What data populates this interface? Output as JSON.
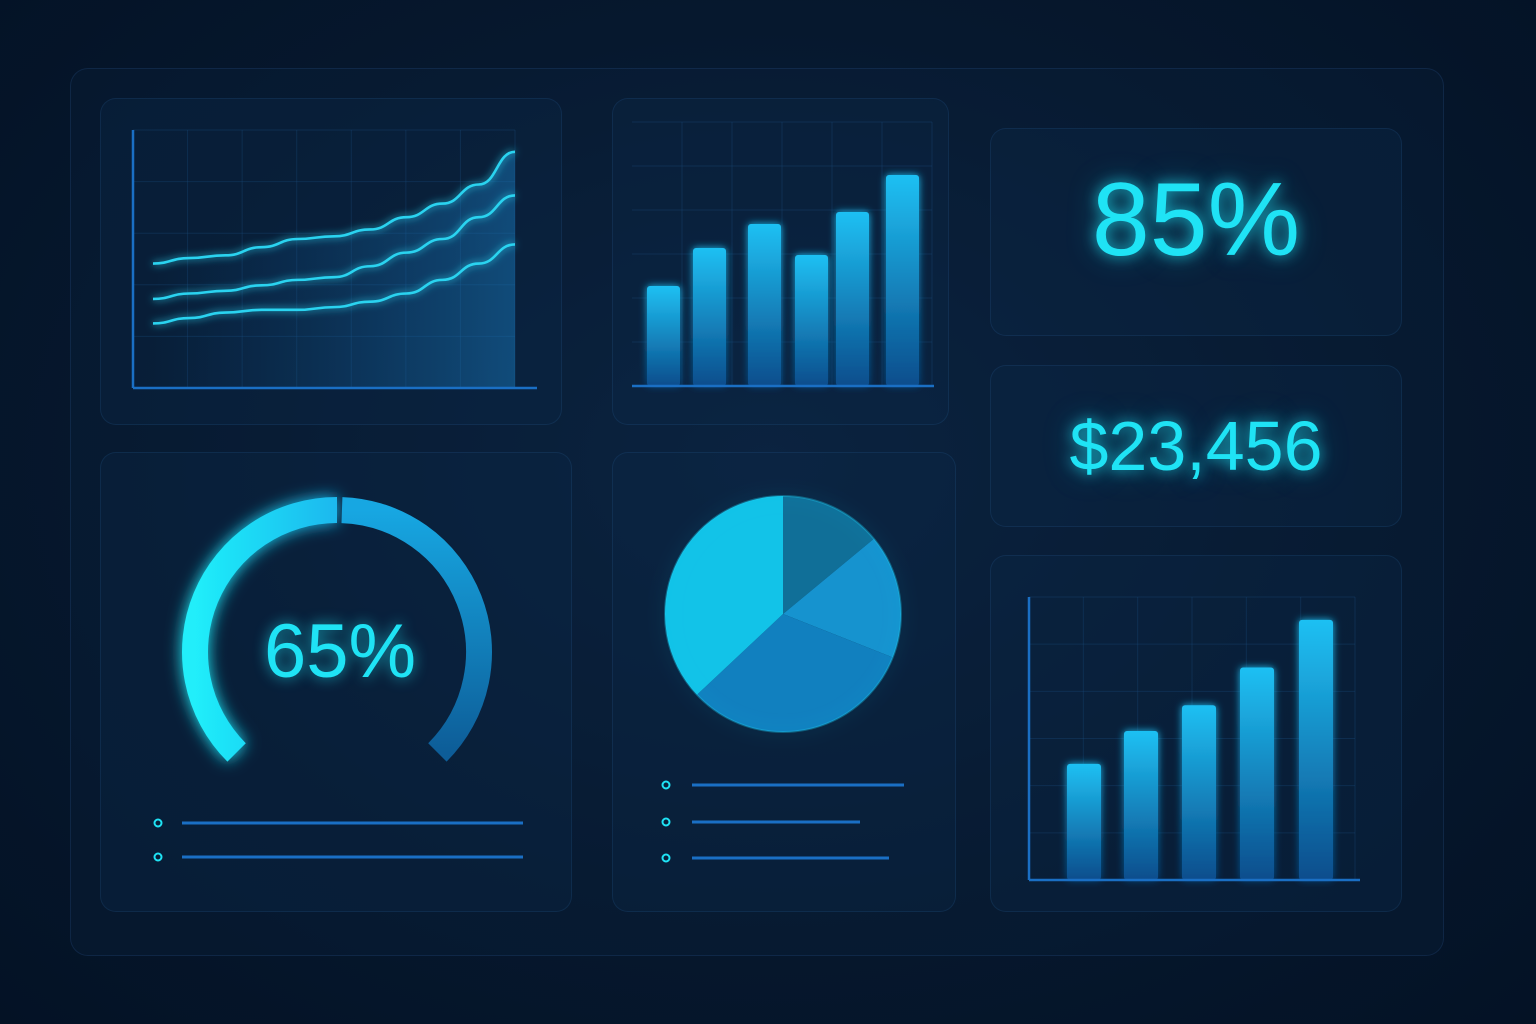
{
  "colors": {
    "accent": "#1fe3f5",
    "bar_top": "#1fb8ef",
    "bar_bottom": "#0a4f8f",
    "axis": "#1a6fc4",
    "pie": [
      "#12c3e8",
      "#106f98",
      "#1693cf",
      "#1180bf"
    ]
  },
  "kpis": {
    "top_percent": "85%",
    "amount": "$23,456"
  },
  "chart_data": [
    {
      "type": "line",
      "x": [
        0,
        1,
        2,
        3,
        4,
        5,
        6,
        7,
        8,
        9,
        10
      ],
      "series": [
        {
          "values": [
            62,
            66,
            68,
            74,
            80,
            82,
            87,
            96,
            106,
            120,
            144
          ]
        },
        {
          "values": [
            36,
            40,
            42,
            46,
            50,
            52,
            60,
            70,
            80,
            96,
            112
          ]
        },
        {
          "values": [
            18,
            22,
            26,
            28,
            28,
            30,
            34,
            40,
            50,
            62,
            76
          ]
        }
      ],
      "ylim": [
        0,
        160
      ],
      "grid": true
    },
    {
      "type": "bar",
      "values": [
        100,
        138,
        162,
        131,
        174,
        211
      ],
      "ylim": [
        0,
        220
      ],
      "grid": true
    },
    {
      "type": "pie",
      "values": [
        37,
        14,
        17,
        32
      ]
    },
    {
      "type": "gauge",
      "value": 65,
      "label": "65%"
    },
    {
      "type": "bar",
      "values": [
        117,
        150,
        176,
        214,
        262
      ],
      "ylim": [
        0,
        285
      ],
      "grid": true
    }
  ]
}
